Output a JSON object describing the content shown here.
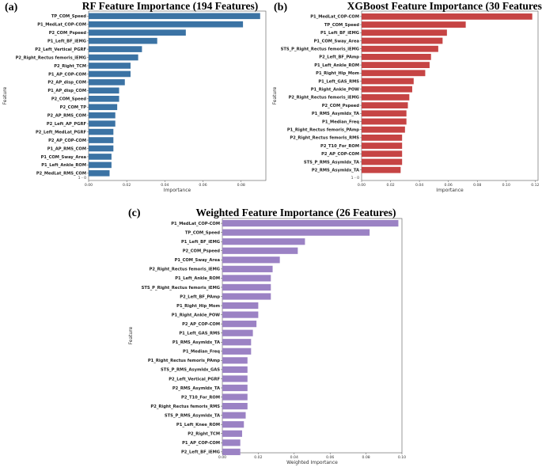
{
  "figure": {
    "panel_labels": [
      "(a)",
      "(b)",
      "(c)"
    ]
  },
  "chart_data": [
    {
      "type": "bar",
      "orientation": "horizontal",
      "title": "RF Feature Importance (194 Features)",
      "xlabel": "Importance",
      "ylabel": "Feature",
      "color": "#3b73a4",
      "xlim": [
        0,
        0.093
      ],
      "xticks": [
        0.0,
        0.02,
        0.04,
        0.06,
        0.08
      ],
      "xtick_labels": [
        "0.00",
        "0.02",
        "0.04",
        "0.06",
        "0.08"
      ],
      "categories": [
        "TP_COM_Speed",
        "P1_MedLat_COP-COM",
        "P2_COM_Pspeed",
        "P1_Left_BF_iEMG",
        "P2_Left_Vertical_PGRF",
        "P2_Right_Rectus femoris_iEMG",
        "P2_Right_TCM",
        "P1_AP_COP-COM",
        "P2_AP_disp_COM",
        "P1_AP_disp_COM",
        "P2_COM_Speed",
        "P2_COM_TP",
        "P2_AP_RMS_COM",
        "P2_Left_AP_PGRF",
        "P2_Left_MedLat_PGRF",
        "P2_AP_COP-COM",
        "P1_AP_RMS_COM",
        "P1_COM_Sway_Area",
        "P1_Left_Ankle_ROM",
        "P2_MedLat_RMS_COM"
      ],
      "values": [
        0.09,
        0.081,
        0.051,
        0.036,
        0.028,
        0.026,
        0.022,
        0.022,
        0.019,
        0.016,
        0.016,
        0.015,
        0.014,
        0.014,
        0.013,
        0.013,
        0.013,
        0.012,
        0.012,
        0.011
      ],
      "extra_ytick": "1 - 0"
    },
    {
      "type": "bar",
      "orientation": "horizontal",
      "title": "XGBoost Feature Importance (30 Features)",
      "xlabel": "Importance",
      "ylabel": "Feature",
      "color": "#c64444",
      "xlim": [
        0,
        0.122
      ],
      "xticks": [
        0.0,
        0.02,
        0.04,
        0.06,
        0.08,
        0.1,
        0.12
      ],
      "xtick_labels": [
        "0.00",
        "0.02",
        "0.04",
        "0.06",
        "0.08",
        "0.10",
        "0.12"
      ],
      "categories": [
        "P1_MedLat_COP-COM",
        "TP_COM_Speed",
        "P1_Left_BF_iEMG",
        "P1_COM_Sway_Area",
        "STS_P_Right_Rectus femoris_iEMG",
        "P2_Left_BF_PAmp",
        "P1_Left_Ankle_ROM",
        "P1_Right_Hip_Mom",
        "P1_Left_GAS_RMS",
        "P1_Right_Ankle_POW",
        "P2_Right_Rectus femoris_iEMG",
        "P2_COM_Pspeed",
        "P1_RMS_AsymIdx_TA",
        "P1_Median_Freq",
        "P1_Right_Rectus femoris_PAmp",
        "P2_Right_Rectus femoris_RMS",
        "P2_T10_For_ROM",
        "P2_AP_COP-COM",
        "STS_P_RMS_AsymIdx_TA",
        "P2_RMS_AsymIdx_TA"
      ],
      "values": [
        0.118,
        0.072,
        0.059,
        0.056,
        0.053,
        0.048,
        0.047,
        0.044,
        0.036,
        0.035,
        0.033,
        0.032,
        0.031,
        0.031,
        0.03,
        0.028,
        0.028,
        0.028,
        0.028,
        0.027
      ],
      "extra_ytick": "1 - 0"
    },
    {
      "type": "bar",
      "orientation": "horizontal",
      "title": "Weighted Feature Importance (26 Features)",
      "xlabel": "Weighted Importance",
      "ylabel": "Feature",
      "color": "#9b82c4",
      "xlim": [
        0,
        0.1
      ],
      "xticks": [
        0.0,
        0.02,
        0.04,
        0.06,
        0.08,
        0.1
      ],
      "xtick_labels": [
        "0.00",
        "0.02",
        "0.04",
        "0.06",
        "0.08",
        "0.10"
      ],
      "categories": [
        "P1_MedLat_COP-COM",
        "TP_COM_Speed",
        "P1_Left_BF_iEMG",
        "P2_COM_Pspeed",
        "P1_COM_Sway_Area",
        "P2_Right_Rectus femoris_iEMG",
        "P1_Left_Ankle_ROM",
        "STS_P_Right_Rectus femoris_iEMG",
        "P2_Left_BF_PAmp",
        "P1_Right_Hip_Mom",
        "P1_Right_Ankle_POW",
        "P2_AP_COP-COM",
        "P1_Left_GAS_RMS",
        "P1_RMS_AsymIdx_TA",
        "P1_Median_Freq",
        "P1_Right_Rectus femoris_PAmp",
        "STS_P_RMS_AsymIdx_GAS",
        "P2_Left_Vertical_PGRF",
        "P2_RMS_AsymIdx_TA",
        "P2_T10_For_ROM",
        "P2_Right_Rectus femoris_RMS",
        "STS_P_RMS_AsymIdx_TA",
        "P1_Left_Knee_ROM",
        "P2_Right_TCM",
        "P1_AP_COP-COM",
        "P2_Left_BF_iEMG"
      ],
      "values": [
        0.098,
        0.082,
        0.046,
        0.042,
        0.032,
        0.028,
        0.027,
        0.027,
        0.027,
        0.02,
        0.02,
        0.019,
        0.017,
        0.016,
        0.016,
        0.014,
        0.014,
        0.014,
        0.014,
        0.014,
        0.014,
        0.013,
        0.012,
        0.011,
        0.01,
        0.01
      ]
    }
  ]
}
